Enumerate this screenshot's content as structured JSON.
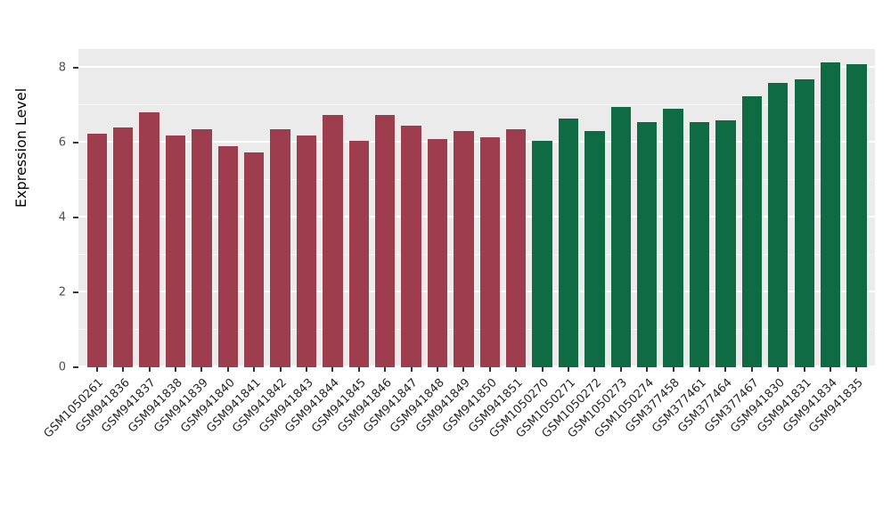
{
  "chart_data": {
    "type": "bar",
    "title": "",
    "xlabel": "",
    "ylabel": "Expression Level",
    "ylim": [
      0,
      8.5
    ],
    "yticks": [
      0,
      2,
      4,
      6,
      8
    ],
    "yticks_minor": [
      1,
      3,
      5,
      7
    ],
    "grid": "white horizontal major and minor lines on gray panel",
    "legend_position": "none",
    "panel_background": "#EBEBEB",
    "categories": [
      "GSM1050261",
      "GSM941836",
      "GSM941837",
      "GSM941838",
      "GSM941839",
      "GSM941840",
      "GSM941841",
      "GSM941842",
      "GSM941843",
      "GSM941844",
      "GSM941845",
      "GSM941846",
      "GSM941847",
      "GSM941848",
      "GSM941849",
      "GSM941850",
      "GSM941851",
      "GSM1050270",
      "GSM1050271",
      "GSM1050272",
      "GSM1050273",
      "GSM1050274",
      "GSM377458",
      "GSM377461",
      "GSM377464",
      "GSM377467",
      "GSM941830",
      "GSM941831",
      "GSM941834",
      "GSM941835"
    ],
    "values": [
      6.25,
      6.4,
      6.8,
      6.2,
      6.35,
      5.9,
      5.75,
      6.35,
      6.2,
      6.75,
      6.05,
      6.75,
      6.45,
      6.1,
      6.3,
      6.15,
      6.35,
      6.05,
      6.65,
      6.3,
      6.95,
      6.55,
      6.9,
      6.55,
      6.6,
      7.25,
      7.6,
      7.7,
      8.15,
      8.1
    ],
    "groups": [
      "group1",
      "group1",
      "group1",
      "group1",
      "group1",
      "group1",
      "group1",
      "group1",
      "group1",
      "group1",
      "group1",
      "group1",
      "group1",
      "group1",
      "group1",
      "group1",
      "group1",
      "group2",
      "group2",
      "group2",
      "group2",
      "group2",
      "group2",
      "group2",
      "group2",
      "group2",
      "group2",
      "group2",
      "group2",
      "group2"
    ],
    "group_colors": {
      "group1": "#9e3d4e",
      "group2": "#0e6b44"
    }
  }
}
